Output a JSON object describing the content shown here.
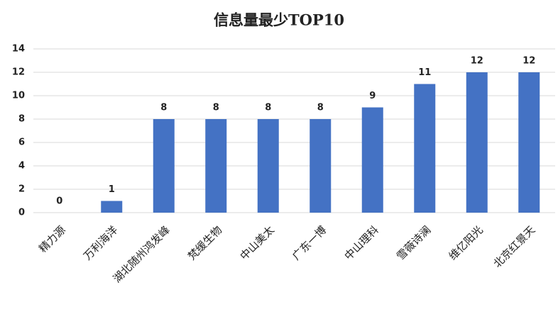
{
  "chart_data": {
    "type": "bar",
    "title": "信息量最少TOP10",
    "categories": [
      "精力源",
      "万利海洋",
      "湖北随州鸿发峰",
      "梵缓生物",
      "中山美太",
      "广东一博",
      "中山理科",
      "雪薇诗澜",
      "维亿阳光",
      "北京红景天"
    ],
    "values": [
      0,
      1,
      8,
      8,
      8,
      8,
      9,
      11,
      12,
      12
    ],
    "color": "#4472c4",
    "ylim": [
      0,
      14
    ],
    "yticks": [
      0,
      2,
      4,
      6,
      8,
      10,
      12,
      14
    ],
    "grid": true,
    "data_labels": true
  }
}
